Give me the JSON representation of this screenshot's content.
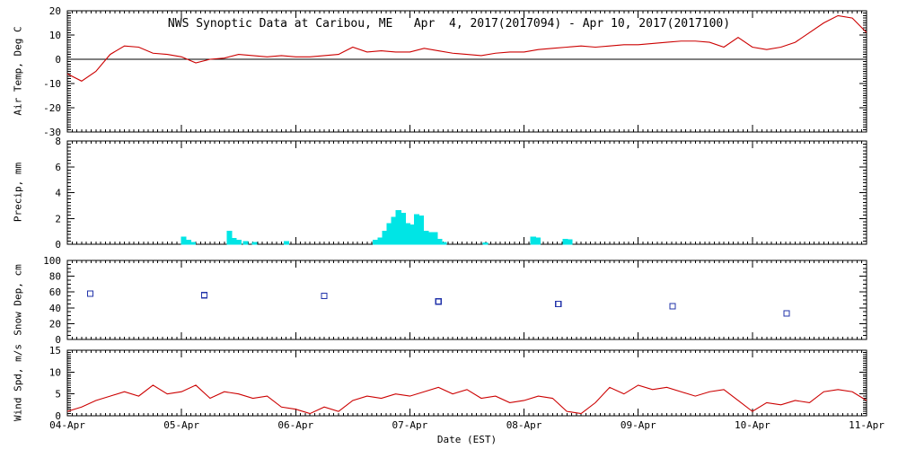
{
  "title": "NWS Synoptic Data at Caribou, ME   Apr  4, 2017(2017094) - Apr 10, 2017(2017100)",
  "xlabel": "Date (EST)",
  "x_tick_labels": [
    "04-Apr",
    "05-Apr",
    "06-Apr",
    "07-Apr",
    "08-Apr",
    "09-Apr",
    "10-Apr",
    "11-Apr"
  ],
  "x_range_days": [
    0,
    7
  ],
  "x_minor_days": 0.041667,
  "axis_color": "#000000",
  "chart_data": [
    {
      "type": "line",
      "panel": "air-temp",
      "ylabel": "Air Temp, Deg C",
      "ylim": [
        -30,
        20
      ],
      "yticks": [
        -30,
        -20,
        -10,
        0,
        10,
        20
      ],
      "ytick_minor": 1,
      "zero_line": true,
      "color": "#cc0000",
      "x": [
        0,
        0.125,
        0.25,
        0.375,
        0.5,
        0.625,
        0.75,
        0.875,
        1,
        1.125,
        1.25,
        1.375,
        1.5,
        1.625,
        1.75,
        1.875,
        2,
        2.125,
        2.25,
        2.375,
        2.5,
        2.625,
        2.75,
        2.875,
        3,
        3.125,
        3.25,
        3.375,
        3.5,
        3.625,
        3.75,
        3.875,
        4,
        4.125,
        4.25,
        4.375,
        4.5,
        4.625,
        4.75,
        4.875,
        5,
        5.125,
        5.25,
        5.375,
        5.5,
        5.625,
        5.75,
        5.875,
        6,
        6.125,
        6.25,
        6.375,
        6.5,
        6.625,
        6.75,
        6.875,
        7
      ],
      "values": [
        -6,
        -9,
        -5,
        2,
        5.5,
        5,
        2.5,
        2,
        1,
        -1.5,
        0,
        0.5,
        2,
        1.5,
        1,
        1.5,
        1,
        1,
        1.5,
        2,
        5,
        3,
        3.5,
        3,
        3,
        4.5,
        3.5,
        2.5,
        2,
        1.5,
        2.5,
        3,
        3,
        4,
        4.5,
        5,
        5.5,
        5,
        5.5,
        6,
        6,
        6.5,
        7,
        7.5,
        7.5,
        7,
        5,
        9,
        5,
        4,
        5,
        7,
        11,
        15,
        18,
        17,
        11
      ]
    },
    {
      "type": "bar",
      "panel": "precip",
      "ylabel": "Precip, mm",
      "ylim": [
        0,
        8
      ],
      "yticks": [
        0,
        2,
        4,
        6,
        8
      ],
      "ytick_minor": 0.25,
      "zero_line": false,
      "color": "#00e5e5",
      "bar_width_days": 0.04,
      "x": [
        1.02,
        1.06,
        1.1,
        1.42,
        1.46,
        1.5,
        1.56,
        1.64,
        1.92,
        2.7,
        2.74,
        2.78,
        2.82,
        2.86,
        2.9,
        2.94,
        2.98,
        3.02,
        3.06,
        3.1,
        3.14,
        3.18,
        3.22,
        3.26,
        3.3,
        3.66,
        4.08,
        4.12,
        4.36,
        4.4
      ],
      "values": [
        0.55,
        0.3,
        0.15,
        1.0,
        0.45,
        0.3,
        0.2,
        0.15,
        0.2,
        0.3,
        0.5,
        1.0,
        1.6,
        2.1,
        2.6,
        2.4,
        1.6,
        1.5,
        2.3,
        2.2,
        1.0,
        0.9,
        0.9,
        0.4,
        0.15,
        0.1,
        0.55,
        0.5,
        0.4,
        0.35
      ]
    },
    {
      "type": "scatter",
      "panel": "snow-depth",
      "ylabel": "Snow Dep, cm",
      "ylim": [
        0,
        100
      ],
      "yticks": [
        0,
        20,
        40,
        60,
        80,
        100
      ],
      "ytick_minor": 5,
      "zero_line": false,
      "color": "#2233aa",
      "x": [
        0.2,
        1.2,
        2.25,
        3.25,
        4.3,
        5.3,
        6.3
      ],
      "values": [
        58,
        56,
        55,
        48,
        45,
        42,
        33
      ]
    },
    {
      "type": "line",
      "panel": "wind-speed",
      "ylabel": "Wind Spd, m/s",
      "ylim": [
        0,
        15
      ],
      "yticks": [
        0,
        5,
        10,
        15
      ],
      "ytick_minor": 0.5,
      "zero_line": false,
      "color": "#cc0000",
      "x": [
        0,
        0.125,
        0.25,
        0.375,
        0.5,
        0.625,
        0.75,
        0.875,
        1,
        1.125,
        1.25,
        1.375,
        1.5,
        1.625,
        1.75,
        1.875,
        2,
        2.125,
        2.25,
        2.375,
        2.5,
        2.625,
        2.75,
        2.875,
        3,
        3.125,
        3.25,
        3.375,
        3.5,
        3.625,
        3.75,
        3.875,
        4,
        4.125,
        4.25,
        4.375,
        4.5,
        4.625,
        4.75,
        4.875,
        5,
        5.125,
        5.25,
        5.375,
        5.5,
        5.625,
        5.75,
        5.875,
        6,
        6.125,
        6.25,
        6.375,
        6.5,
        6.625,
        6.75,
        6.875,
        7
      ],
      "values": [
        1,
        2,
        3.5,
        4.5,
        5.5,
        4.5,
        7,
        5,
        5.5,
        7,
        4,
        5.5,
        5,
        4,
        4.5,
        2,
        1.5,
        0.5,
        2,
        1,
        3.5,
        4.5,
        4,
        5,
        4.5,
        5.5,
        6.5,
        5,
        6,
        4,
        4.5,
        3,
        3.5,
        4.5,
        4,
        1,
        0.5,
        3,
        6.5,
        5,
        7,
        6,
        6.5,
        5.5,
        4.5,
        5.5,
        6,
        3.5,
        1,
        3,
        2.5,
        3.5,
        3,
        5.5,
        6,
        5.5,
        3.5
      ]
    }
  ]
}
